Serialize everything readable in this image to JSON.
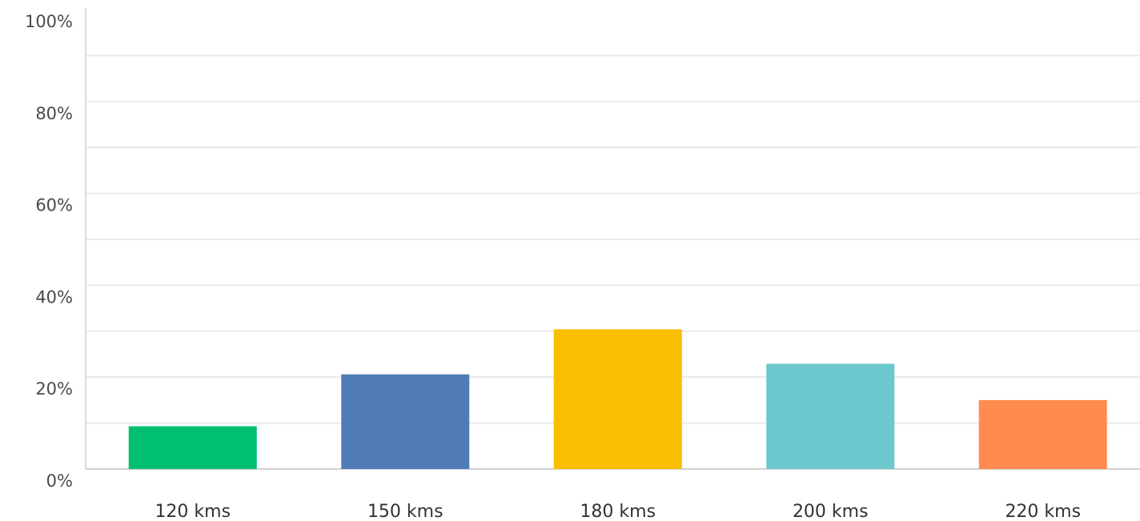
{
  "chart_data": {
    "type": "bar",
    "categories": [
      "120 kms",
      "150 kms",
      "180 kms",
      "200 kms",
      "220 kms"
    ],
    "values": [
      9.3,
      20.6,
      30.4,
      22.9,
      15.0
    ],
    "colors": [
      "#00bf6f",
      "#507cb6",
      "#f9be00",
      "#6bc8cd",
      "#ff8b4f"
    ],
    "y_ticks": [
      "0%",
      "20%",
      "40%",
      "60%",
      "80%",
      "100%"
    ],
    "ylim": [
      0,
      100
    ],
    "grid": true,
    "title": "",
    "xlabel": "",
    "ylabel": ""
  }
}
